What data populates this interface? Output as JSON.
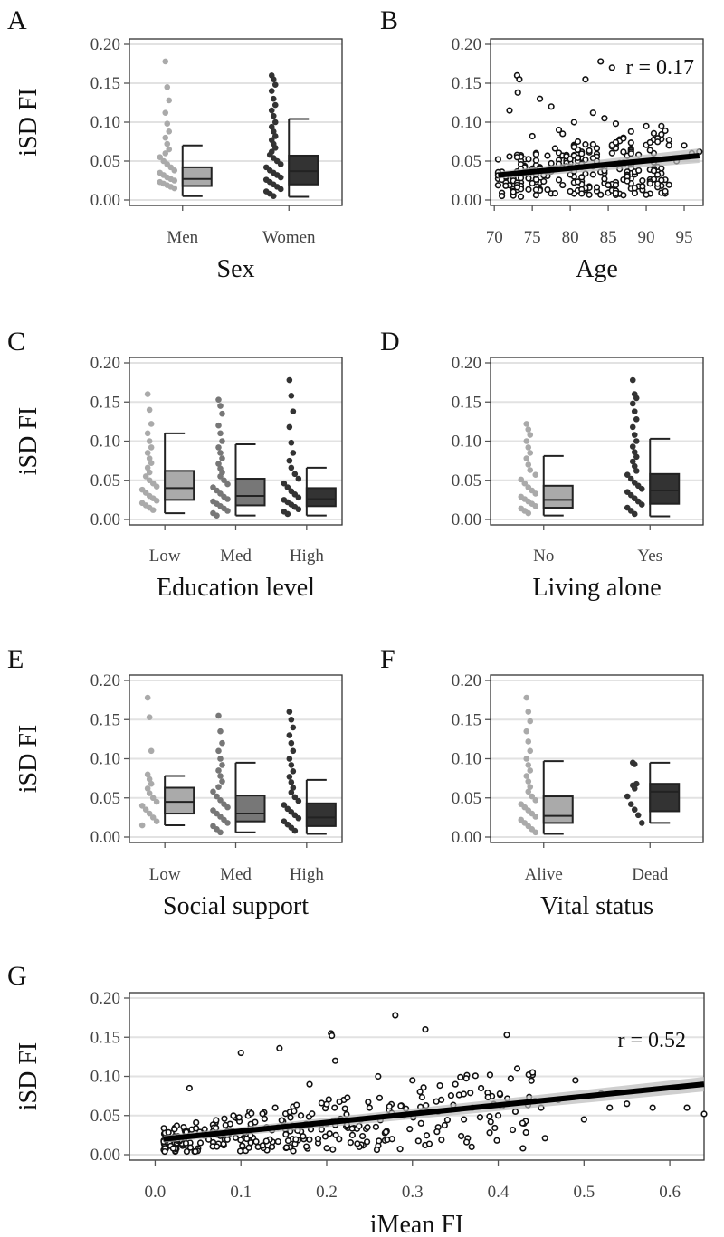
{
  "chart_data": [
    {
      "panel": "A",
      "type": "box",
      "xlabel": "Sex",
      "ylabel": "iSD FI",
      "ylim": [
        0,
        0.2
      ],
      "yticks": [
        "0.00",
        "0.05",
        "0.10",
        "0.15",
        "0.20"
      ],
      "categories": [
        "Men",
        "Women"
      ],
      "boxes": [
        {
          "min": 0.005,
          "q1": 0.018,
          "median": 0.027,
          "q3": 0.042,
          "max": 0.07,
          "color": "#aaaaaa",
          "points": [
            0.178,
            0.145,
            0.128,
            0.112,
            0.098,
            0.088,
            0.08,
            0.072,
            0.065,
            0.06,
            0.055,
            0.05,
            0.046,
            0.042,
            0.038,
            0.035,
            0.032,
            0.029,
            0.027,
            0.025,
            0.023,
            0.021,
            0.019,
            0.017,
            0.015
          ]
        },
        {
          "min": 0.004,
          "q1": 0.02,
          "median": 0.037,
          "q3": 0.057,
          "max": 0.104,
          "color": "#333333",
          "points": [
            0.16,
            0.155,
            0.148,
            0.14,
            0.13,
            0.122,
            0.115,
            0.108,
            0.1,
            0.094,
            0.088,
            0.082,
            0.077,
            0.072,
            0.067,
            0.062,
            0.058,
            0.054,
            0.05,
            0.046,
            0.042,
            0.038,
            0.035,
            0.032,
            0.029,
            0.026,
            0.023,
            0.02,
            0.017,
            0.014,
            0.011,
            0.008,
            0.005
          ]
        }
      ]
    },
    {
      "panel": "B",
      "type": "scatter",
      "xlabel": "Age",
      "ylabel": "",
      "xlim": [
        69.5,
        97.5
      ],
      "ylim": [
        0,
        0.2
      ],
      "xticks": [
        "70",
        "75",
        "80",
        "85",
        "90",
        "95"
      ],
      "yticks": [
        "0.00",
        "0.05",
        "0.10",
        "0.15",
        "0.20"
      ],
      "annotation": "r = 0.17",
      "fit": {
        "x": [
          70.5,
          97
        ],
        "y": [
          0.032,
          0.057
        ]
      },
      "points": [
        [
          73,
          0.16
        ],
        [
          73.3,
          0.155
        ],
        [
          73.1,
          0.138
        ],
        [
          72,
          0.115
        ],
        [
          84,
          0.178
        ],
        [
          85.5,
          0.17
        ],
        [
          82,
          0.155
        ],
        [
          76,
          0.13
        ],
        [
          77.5,
          0.12
        ],
        [
          83,
          0.112
        ],
        [
          84.5,
          0.105
        ],
        [
          86,
          0.098
        ],
        [
          80.5,
          0.1
        ],
        [
          78.5,
          0.09
        ],
        [
          90,
          0.095
        ],
        [
          92,
          0.095
        ],
        [
          79,
          0.085
        ],
        [
          88,
          0.088
        ],
        [
          75,
          0.082
        ],
        [
          81,
          0.075
        ],
        [
          87,
          0.08
        ],
        [
          93,
          0.07
        ],
        [
          95,
          0.07
        ],
        [
          91,
          0.06
        ],
        [
          89,
          0.058
        ],
        [
          94,
          0.05
        ],
        [
          96,
          0.06
        ],
        [
          97,
          0.062
        ]
      ]
    },
    {
      "panel": "C",
      "type": "box",
      "xlabel": "Education level",
      "ylabel": "iSD FI",
      "ylim": [
        0,
        0.2
      ],
      "yticks": [
        "0.00",
        "0.05",
        "0.10",
        "0.15",
        "0.20"
      ],
      "categories": [
        "Low",
        "Med",
        "High"
      ],
      "boxes": [
        {
          "min": 0.008,
          "q1": 0.025,
          "median": 0.04,
          "q3": 0.062,
          "max": 0.11,
          "color": "#aaaaaa",
          "points": [
            0.16,
            0.14,
            0.122,
            0.11,
            0.1,
            0.092,
            0.085,
            0.078,
            0.072,
            0.066,
            0.06,
            0.055,
            0.05,
            0.046,
            0.042,
            0.038,
            0.034,
            0.03,
            0.027,
            0.024,
            0.021,
            0.018,
            0.015,
            0.012
          ]
        },
        {
          "min": 0.005,
          "q1": 0.018,
          "median": 0.03,
          "q3": 0.052,
          "max": 0.096,
          "color": "#777777",
          "points": [
            0.153,
            0.145,
            0.135,
            0.12,
            0.11,
            0.1,
            0.092,
            0.085,
            0.078,
            0.071,
            0.065,
            0.06,
            0.055,
            0.05,
            0.045,
            0.041,
            0.037,
            0.033,
            0.029,
            0.026,
            0.023,
            0.02,
            0.017,
            0.014,
            0.011,
            0.008,
            0.005
          ]
        },
        {
          "min": 0.005,
          "q1": 0.017,
          "median": 0.026,
          "q3": 0.04,
          "max": 0.066,
          "color": "#333333",
          "points": [
            0.178,
            0.158,
            0.138,
            0.118,
            0.098,
            0.085,
            0.075,
            0.066,
            0.058,
            0.052,
            0.046,
            0.041,
            0.036,
            0.032,
            0.028,
            0.025,
            0.022,
            0.019,
            0.016,
            0.013,
            0.01,
            0.007
          ]
        }
      ]
    },
    {
      "panel": "D",
      "type": "box",
      "xlabel": "Living alone",
      "ylabel": "",
      "ylim": [
        0,
        0.2
      ],
      "yticks": [
        "0.00",
        "0.05",
        "0.10",
        "0.15",
        "0.20"
      ],
      "categories": [
        "No",
        "Yes"
      ],
      "boxes": [
        {
          "min": 0.005,
          "q1": 0.015,
          "median": 0.025,
          "q3": 0.043,
          "max": 0.081,
          "color": "#aaaaaa",
          "points": [
            0.122,
            0.115,
            0.108,
            0.1,
            0.092,
            0.085,
            0.078,
            0.07,
            0.063,
            0.057,
            0.051,
            0.046,
            0.041,
            0.037,
            0.033,
            0.029,
            0.026,
            0.023,
            0.02,
            0.017,
            0.014,
            0.011,
            0.008
          ]
        },
        {
          "min": 0.004,
          "q1": 0.02,
          "median": 0.037,
          "q3": 0.058,
          "max": 0.103,
          "color": "#333333",
          "points": [
            0.178,
            0.16,
            0.155,
            0.148,
            0.138,
            0.128,
            0.118,
            0.108,
            0.1,
            0.093,
            0.086,
            0.08,
            0.074,
            0.068,
            0.062,
            0.057,
            0.052,
            0.047,
            0.043,
            0.039,
            0.035,
            0.031,
            0.027,
            0.023,
            0.019,
            0.015,
            0.011,
            0.007
          ]
        }
      ]
    },
    {
      "panel": "E",
      "type": "box",
      "xlabel": "Social support",
      "ylabel": "iSD FI",
      "ylim": [
        0,
        0.2
      ],
      "yticks": [
        "0.00",
        "0.05",
        "0.10",
        "0.15",
        "0.20"
      ],
      "categories": [
        "Low",
        "Med",
        "High"
      ],
      "boxes": [
        {
          "min": 0.015,
          "q1": 0.03,
          "median": 0.045,
          "q3": 0.063,
          "max": 0.078,
          "color": "#aaaaaa",
          "points": [
            0.178,
            0.153,
            0.11,
            0.08,
            0.074,
            0.068,
            0.062,
            0.056,
            0.05,
            0.045,
            0.04,
            0.035,
            0.03,
            0.025,
            0.02,
            0.015
          ]
        },
        {
          "min": 0.006,
          "q1": 0.02,
          "median": 0.03,
          "q3": 0.053,
          "max": 0.095,
          "color": "#777777",
          "points": [
            0.155,
            0.135,
            0.12,
            0.11,
            0.1,
            0.092,
            0.085,
            0.078,
            0.071,
            0.064,
            0.058,
            0.052,
            0.047,
            0.042,
            0.038,
            0.034,
            0.03,
            0.026,
            0.022,
            0.018,
            0.014,
            0.01,
            0.006
          ]
        },
        {
          "min": 0.004,
          "q1": 0.014,
          "median": 0.025,
          "q3": 0.043,
          "max": 0.073,
          "color": "#333333",
          "points": [
            0.16,
            0.15,
            0.14,
            0.13,
            0.12,
            0.11,
            0.1,
            0.092,
            0.084,
            0.077,
            0.07,
            0.063,
            0.057,
            0.051,
            0.046,
            0.041,
            0.036,
            0.032,
            0.028,
            0.024,
            0.02,
            0.016,
            0.012,
            0.008
          ]
        }
      ]
    },
    {
      "panel": "F",
      "type": "box",
      "xlabel": "Vital status",
      "ylabel": "",
      "ylim": [
        0,
        0.2
      ],
      "yticks": [
        "0.00",
        "0.05",
        "0.10",
        "0.15",
        "0.20"
      ],
      "categories": [
        "Alive",
        "Dead"
      ],
      "boxes": [
        {
          "min": 0.004,
          "q1": 0.018,
          "median": 0.027,
          "q3": 0.052,
          "max": 0.097,
          "color": "#aaaaaa",
          "points": [
            0.178,
            0.16,
            0.148,
            0.135,
            0.122,
            0.11,
            0.1,
            0.092,
            0.085,
            0.078,
            0.071,
            0.064,
            0.058,
            0.052,
            0.047,
            0.042,
            0.038,
            0.034,
            0.03,
            0.026,
            0.022,
            0.018,
            0.014,
            0.01,
            0.006
          ]
        },
        {
          "min": 0.018,
          "q1": 0.033,
          "median": 0.058,
          "q3": 0.068,
          "max": 0.095,
          "color": "#333333",
          "points": [
            0.095,
            0.093,
            0.068,
            0.066,
            0.062,
            0.052,
            0.042,
            0.035,
            0.028,
            0.018
          ]
        }
      ]
    },
    {
      "panel": "G",
      "type": "scatter",
      "xlabel": "iMean FI",
      "ylabel": "iSD FI",
      "xlim": [
        -0.03,
        0.64
      ],
      "ylim": [
        0,
        0.2
      ],
      "xticks": [
        "0.0",
        "0.1",
        "0.2",
        "0.3",
        "0.4",
        "0.5",
        "0.6"
      ],
      "yticks": [
        "0.00",
        "0.05",
        "0.10",
        "0.15",
        "0.20"
      ],
      "annotation": "r = 0.52",
      "fit": {
        "x": [
          0.01,
          0.64
        ],
        "y": [
          0.02,
          0.09
        ]
      },
      "points": [
        [
          0.28,
          0.178
        ],
        [
          0.205,
          0.155
        ],
        [
          0.206,
          0.152
        ],
        [
          0.315,
          0.16
        ],
        [
          0.41,
          0.153
        ],
        [
          0.1,
          0.13
        ],
        [
          0.145,
          0.136
        ],
        [
          0.21,
          0.12
        ],
        [
          0.44,
          0.102
        ],
        [
          0.49,
          0.095
        ],
        [
          0.04,
          0.085
        ],
        [
          0.26,
          0.1
        ],
        [
          0.3,
          0.095
        ],
        [
          0.35,
          0.09
        ],
        [
          0.18,
          0.09
        ],
        [
          0.38,
          0.085
        ],
        [
          0.52,
          0.078
        ],
        [
          0.55,
          0.065
        ],
        [
          0.58,
          0.06
        ],
        [
          0.62,
          0.06
        ],
        [
          0.64,
          0.052
        ],
        [
          0.47,
          0.07
        ],
        [
          0.53,
          0.06
        ],
        [
          0.5,
          0.045
        ],
        [
          0.45,
          0.06
        ],
        [
          0.42,
          0.055
        ],
        [
          0.39,
          0.028
        ],
        [
          0.33,
          0.035
        ],
        [
          0.27,
          0.03
        ],
        [
          0.23,
          0.025
        ],
        [
          0.19,
          0.015
        ],
        [
          0.16,
          0.02
        ],
        [
          0.12,
          0.01
        ],
        [
          0.08,
          0.012
        ],
        [
          0.05,
          0.008
        ],
        [
          0.01,
          0.006
        ],
        [
          0.07,
          0.04
        ],
        [
          0.11,
          0.055
        ],
        [
          0.14,
          0.06
        ],
        [
          0.17,
          0.05
        ],
        [
          0.22,
          0.07
        ],
        [
          0.25,
          0.06
        ],
        [
          0.33,
          0.055
        ],
        [
          0.36,
          0.045
        ],
        [
          0.4,
          0.05
        ],
        [
          0.09,
          0.03
        ],
        [
          0.13,
          0.035
        ],
        [
          0.2,
          0.04
        ],
        [
          0.24,
          0.045
        ],
        [
          0.29,
          0.05
        ],
        [
          0.31,
          0.04
        ],
        [
          0.37,
          0.06
        ],
        [
          0.43,
          0.04
        ],
        [
          0.03,
          0.02
        ],
        [
          0.06,
          0.025
        ]
      ]
    }
  ],
  "panel_letters": [
    "A",
    "B",
    "C",
    "D",
    "E",
    "F",
    "G"
  ]
}
